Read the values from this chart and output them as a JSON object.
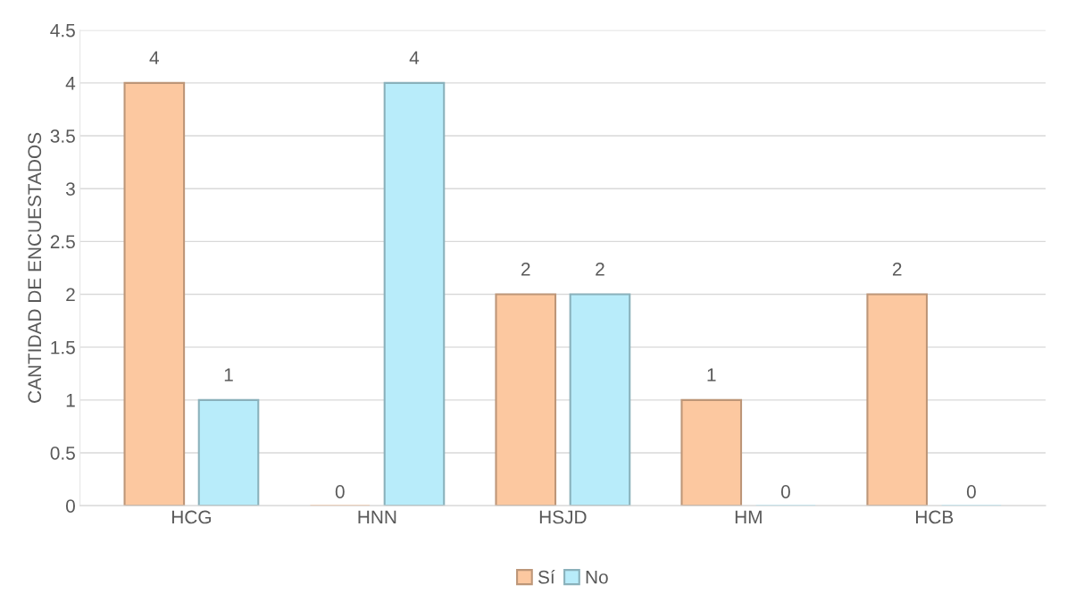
{
  "chart_data": {
    "type": "bar",
    "ylabel": "CANTIDAD DE ENCUESTADOS",
    "categories": [
      "HCG",
      "HNN",
      "HSJD",
      "HM",
      "HCB"
    ],
    "series": [
      {
        "name": "Sí",
        "color": "#fcc8a0",
        "values": [
          4,
          0,
          2,
          1,
          2
        ]
      },
      {
        "name": "No",
        "color": "#b8ecfa",
        "values": [
          1,
          4,
          2,
          0,
          0
        ]
      }
    ],
    "ylim": [
      0,
      4.5
    ],
    "yticks": [
      0,
      0.5,
      1,
      1.5,
      2,
      2.5,
      3,
      3.5,
      4,
      4.5
    ],
    "grid": "y",
    "legend": "bottom",
    "data_labels": true
  }
}
